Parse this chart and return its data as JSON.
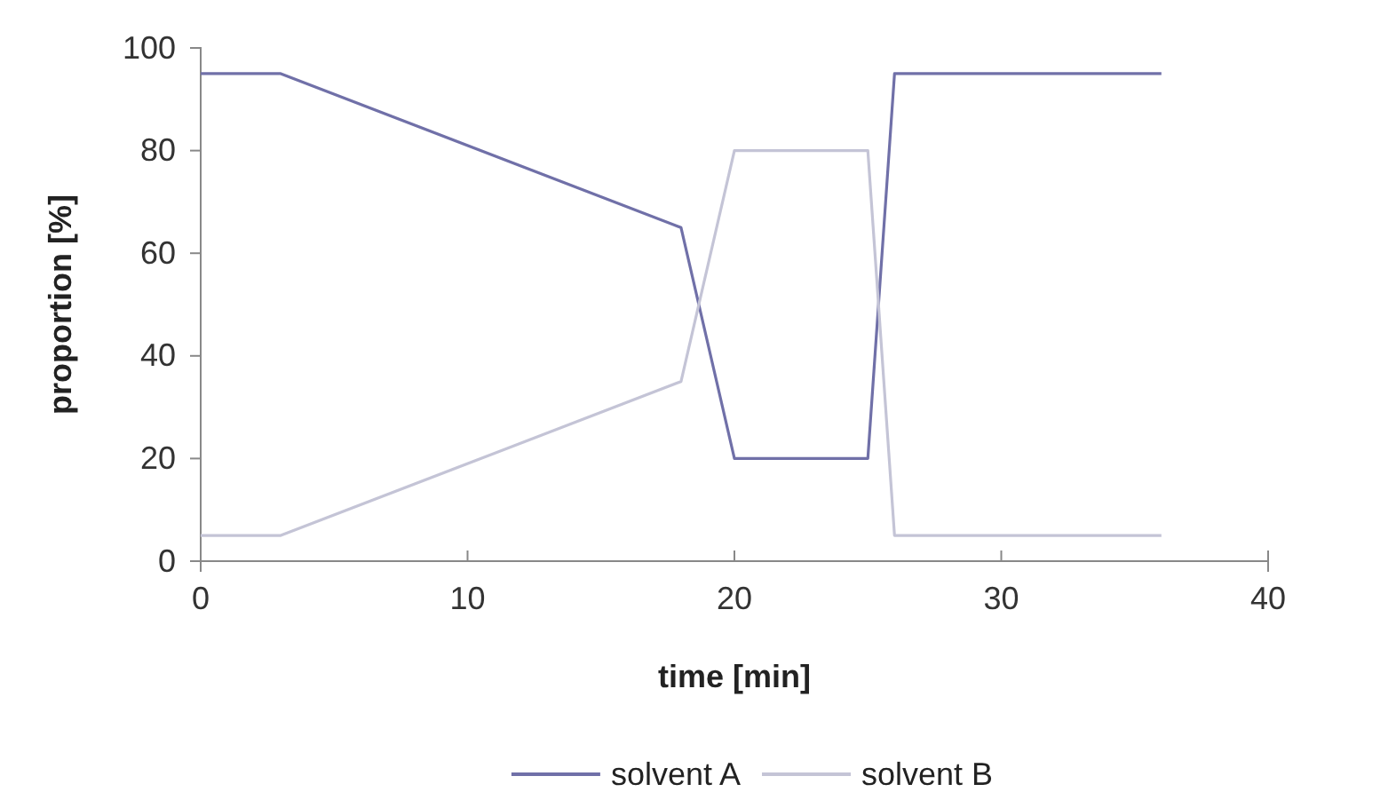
{
  "chart_data": {
    "type": "line",
    "xlabel": "time [min]",
    "ylabel": "proportion [%]",
    "xlim": [
      0,
      40
    ],
    "xticks": [
      0,
      10,
      20,
      30,
      40
    ],
    "ylim": [
      0,
      100
    ],
    "yticks": [
      0,
      20,
      40,
      60,
      80,
      100
    ],
    "legend": "bottom",
    "grid": false,
    "marker": "none",
    "line_style": "solid",
    "series": [
      {
        "name": "solvent A",
        "color": "#7070a8",
        "x": [
          0,
          3,
          18,
          20,
          25,
          26,
          36
        ],
        "values": [
          95,
          95,
          65,
          20,
          20,
          95,
          95
        ]
      },
      {
        "name": "solvent B",
        "color": "#c4c4d6",
        "x": [
          0,
          3,
          18,
          20,
          25,
          26,
          36
        ],
        "values": [
          5,
          5,
          35,
          80,
          80,
          5,
          5
        ]
      }
    ]
  }
}
